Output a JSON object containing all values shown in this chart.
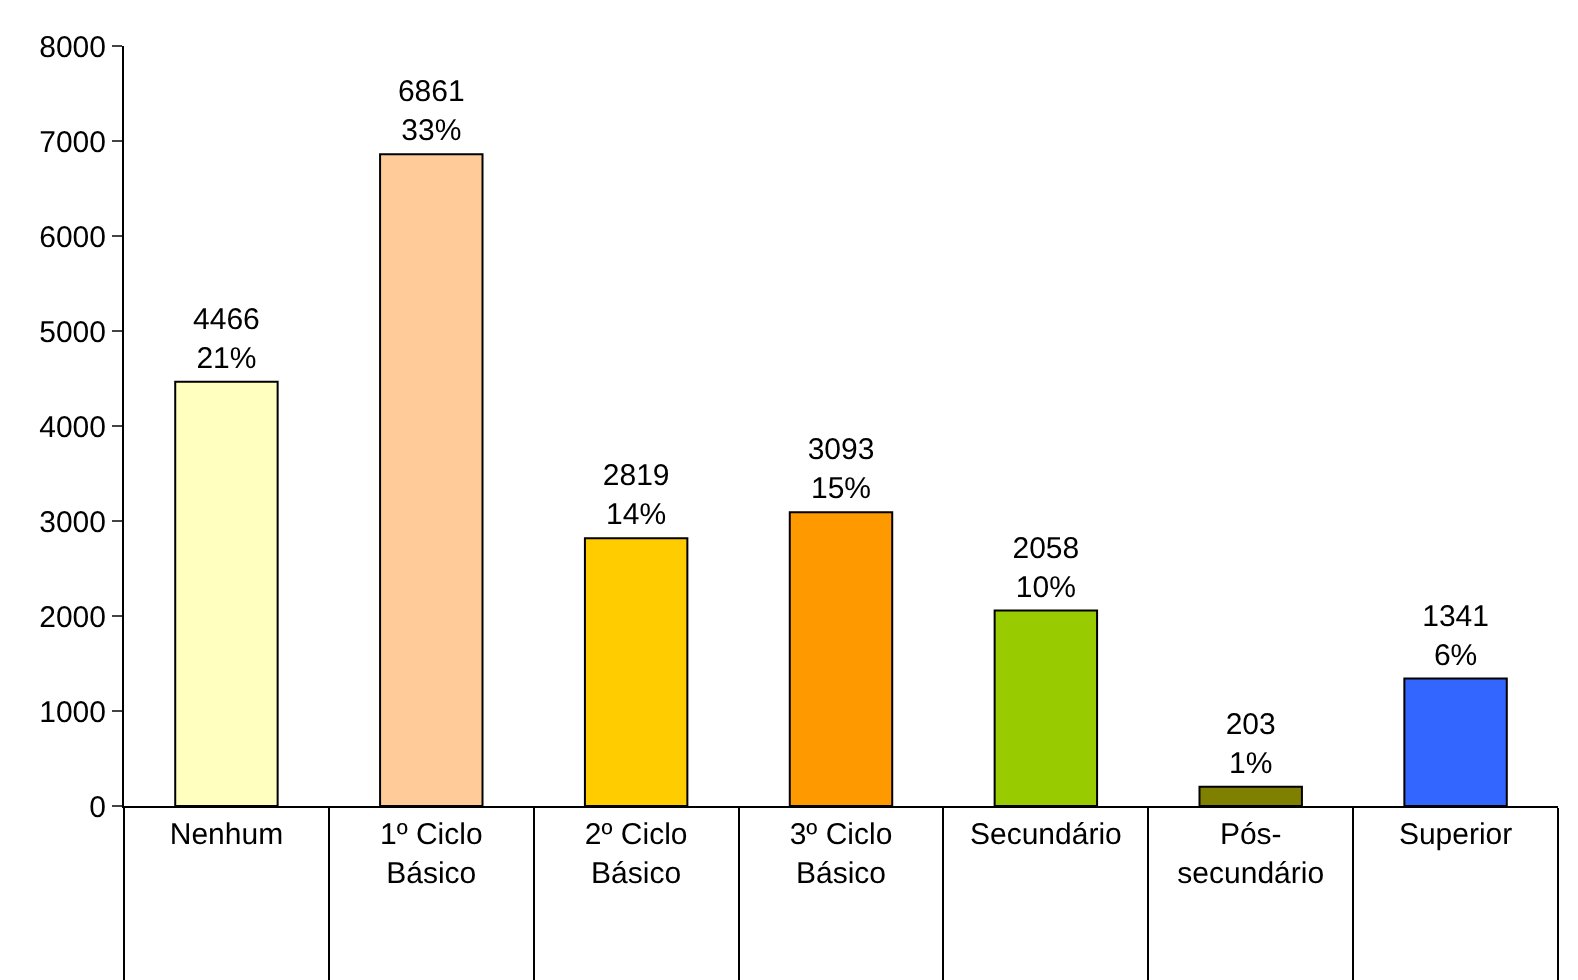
{
  "chart_data": {
    "type": "bar",
    "categories": [
      "Nenhum",
      "1º Ciclo Básico",
      "2º Ciclo Básico",
      "3º Ciclo Básico",
      "Secundário",
      "Pós-secundário",
      "Superior"
    ],
    "values": [
      4466,
      6861,
      2819,
      3093,
      2058,
      203,
      1341
    ],
    "colors": [
      "#ffffc0",
      "#ffcc99",
      "#ffcc00",
      "#ff9900",
      "#99cc00",
      "#808000",
      "#3366ff"
    ],
    "value_labels": [
      "4466\n21%",
      "6861\n33%",
      "2819\n14%",
      "3093\n15%",
      "2058\n10%",
      "203\n1%",
      "1341\n6%"
    ],
    "ylim": [
      0,
      8000
    ],
    "yticks": [
      0,
      1000,
      2000,
      3000,
      4000,
      5000,
      6000,
      7000,
      8000
    ],
    "grid": false,
    "legend": false
  }
}
